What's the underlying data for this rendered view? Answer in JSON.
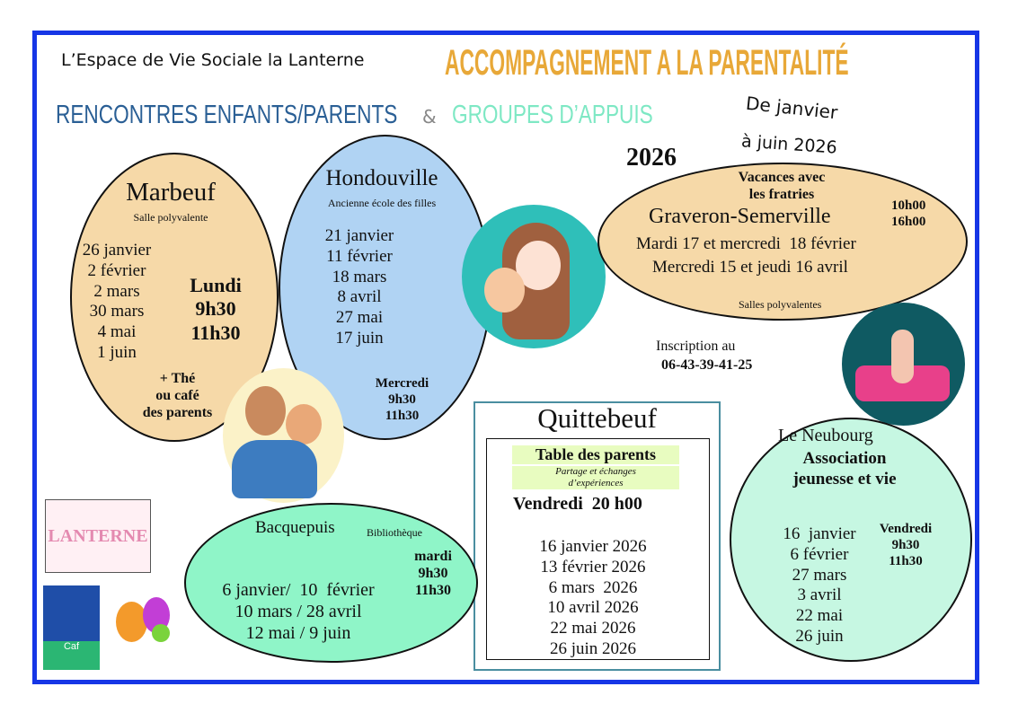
{
  "header": {
    "org": "L’Espace de Vie Sociale la Lanterne",
    "title": "ACCOMPAGNEMENT A LA PARENTALITÉ",
    "sub1": "RENCONTRES ENFANTS/PARENTS",
    "amp": "&",
    "sub2": "GROUPES D’APPUIS",
    "period1": "De janvier",
    "period2": "à juin 2026",
    "year": "2026"
  },
  "marbeuf": {
    "name": "Marbeuf",
    "place": "Salle polyvalente",
    "dates": [
      "26 janvier",
      "2 février",
      "2 mars",
      "30 mars",
      "4 mai",
      "1 juin"
    ],
    "day": "Lundi",
    "start": "9h30",
    "end": "11h30",
    "note": [
      "+ Thé",
      "ou café",
      "des parents"
    ]
  },
  "hondouville": {
    "name": "Hondouville",
    "place": "Ancienne école des filles",
    "dates": [
      "21 janvier",
      "11 février",
      "18 mars",
      "8 avril",
      "27 mai",
      "17 juin"
    ],
    "day": "Mercredi",
    "start": "9h30",
    "end": "11h30"
  },
  "graveron": {
    "title1": "Vacances avec",
    "title2": "les fratries",
    "name": "Graveron-Semerville",
    "start": "10h00",
    "end": "16h00",
    "line1": "Mardi 17 et mercredi  18 février",
    "line2": "Mercredi 15 et jeudi 16 avril",
    "place": "Salles polyvalentes"
  },
  "inscription": {
    "label": "Inscription au",
    "phone": "06-43-39-41-25"
  },
  "quittebeuf": {
    "name": "Quittebeuf",
    "table": "Table des parents",
    "desc1": "Partage et échanges",
    "desc2": "d’expériences",
    "day": "Vendredi  20 h00",
    "dates": [
      "16 janvier 2026",
      "13 février 2026",
      "6 mars  2026",
      "10 avril 2026",
      "22 mai 2026",
      "26 juin 2026"
    ]
  },
  "bacquepuis": {
    "name": "Bacquepuis",
    "place": "Bibliothèque",
    "lines": [
      "6 janvier/  10  février",
      "10 mars / 28 avril",
      "12 mai / 9 juin"
    ],
    "day": "mardi",
    "start": "9h30",
    "end": "11h30"
  },
  "neubourg": {
    "name": "Le Neubourg",
    "assoc1": "Association",
    "assoc2": "jeunesse et vie",
    "dates": [
      "16  janvier",
      "6 février",
      "27 mars",
      "3 avril",
      "22 mai",
      "26 juin"
    ],
    "day": "Vendredi",
    "start": "9h30",
    "end": "11h30"
  },
  "logos": {
    "lanterne": "LA LANTERNE ESPACE DE VIE SOCIALE",
    "caf": "ALLOCATIONS FAMILIALES Caf de l'Eure",
    "parentalite": "ACCOMPAGNEMENT À LA PARENTALITÉ 27"
  },
  "colors": {
    "border": "#1636e6",
    "title": "#e8a838",
    "sub1": "#2a5f95",
    "sub2": "#7ee8c4",
    "peach": "#f6d9a8",
    "blue": "#b0d3f3",
    "mint": "#8ff5c8",
    "lightmint": "#c6f7e2"
  }
}
